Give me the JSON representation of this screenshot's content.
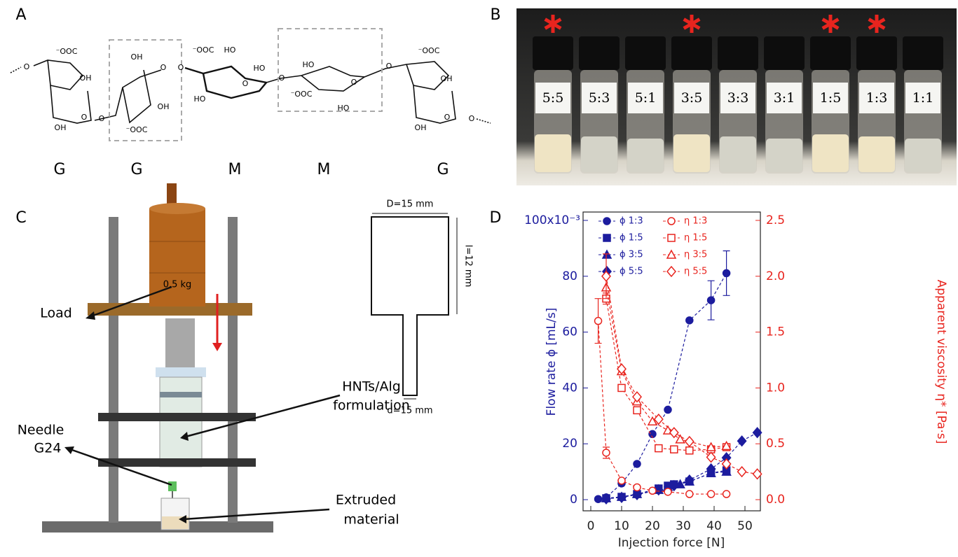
{
  "panels": [
    "A",
    "B",
    "C",
    "D"
  ],
  "panel_a": {
    "structure_labels": [
      "O",
      "⁻OOC",
      "OH",
      "OH",
      "O",
      "O",
      "OH",
      "O",
      "OH",
      "⁻OOC",
      "O",
      "⁻OOC",
      "HO",
      "HO",
      "O",
      "HO",
      "O",
      "HO",
      "O",
      "⁻OOC",
      "HO",
      "O",
      "⁻OOC",
      "OH",
      "O",
      "OH",
      "O"
    ],
    "units": [
      "G",
      "G",
      "M",
      "M",
      "G"
    ]
  },
  "panel_b": {
    "vials": [
      {
        "label": "5:5",
        "marked": true
      },
      {
        "label": "5:3",
        "marked": false
      },
      {
        "label": "5:1",
        "marked": false
      },
      {
        "label": "3:5",
        "marked": true
      },
      {
        "label": "3:3",
        "marked": false
      },
      {
        "label": "3:1",
        "marked": false
      },
      {
        "label": "1:5",
        "marked": true
      },
      {
        "label": "1:3",
        "marked": true
      },
      {
        "label": "1:1",
        "marked": false
      }
    ]
  },
  "panel_c": {
    "weight": "0.5 kg",
    "load": "Load",
    "formulation": [
      "HNTs/Alg",
      "formulation"
    ],
    "needle": [
      "Needle",
      "G24"
    ],
    "extruded": [
      "Extruded",
      "material"
    ],
    "barrel_diameter": "D=15 mm",
    "barrel_length": "l=12 mm",
    "needle_diameter": "d=15 mm"
  },
  "chart_data": {
    "type": "line",
    "x_label": "Injection force [N]",
    "y_label": "Flow rate ϕ [mL/s]",
    "y2_label": "Apparent viscosity η* [Pa·s]",
    "xlim": [
      -2.5,
      55
    ],
    "xticks": [
      0,
      10,
      20,
      30,
      40,
      50
    ],
    "ylim": [
      -4,
      103
    ],
    "yticks": [
      0,
      20,
      40,
      60,
      80,
      {
        "value": 100,
        "label": "100x10⁻³"
      }
    ],
    "y2lim": [
      -0.1,
      2.575
    ],
    "y2ticks": [
      {
        "value": 0,
        "label": "0.0"
      },
      0.5,
      {
        "value": 1,
        "label": "1.0"
      },
      1.5,
      {
        "value": 2,
        "label": "2.0"
      },
      2.5
    ],
    "y_color": "#1c1c9e",
    "y2_color": "#e8241e",
    "series": [
      {
        "name": "ϕ 1:3",
        "color": "#1c1c9e",
        "marker": "circle",
        "filled": true,
        "axis": "y",
        "x": [
          2.4,
          5,
          10,
          15,
          20,
          25,
          32,
          39,
          44
        ],
        "values": [
          0.2,
          0.8,
          5.8,
          12.8,
          23.5,
          32.2,
          64.2,
          71.4,
          81.1
        ],
        "errors": [
          null,
          null,
          null,
          null,
          null,
          null,
          null,
          7,
          8
        ]
      },
      {
        "name": "ϕ 1:5",
        "color": "#1c1c9e",
        "marker": "square",
        "filled": true,
        "axis": "y",
        "x": [
          5,
          10,
          15,
          22,
          25,
          27,
          32,
          39,
          44
        ],
        "values": [
          0.5,
          1,
          2,
          4,
          5,
          5.5,
          6.5,
          9.5,
          10.5
        ],
        "errors": [
          null,
          null,
          null,
          null,
          null,
          null,
          null,
          null,
          null
        ]
      },
      {
        "name": "ϕ 3:5",
        "color": "#1c1c9e",
        "marker": "triangle",
        "filled": true,
        "axis": "y",
        "x": [
          5,
          10,
          15,
          22,
          25,
          29,
          32,
          39,
          44
        ],
        "values": [
          0.5,
          1,
          2,
          3.5,
          4.5,
          5.5,
          6.5,
          9.5,
          10
        ],
        "errors": [
          null,
          null,
          null,
          null,
          null,
          null,
          null,
          null,
          null
        ]
      },
      {
        "name": "ϕ 5:5",
        "color": "#1c1c9e",
        "marker": "diamond",
        "filled": true,
        "axis": "y",
        "x": [
          5,
          10,
          15,
          22,
          27,
          32,
          39,
          44,
          49,
          54
        ],
        "values": [
          0.3,
          0.8,
          1.8,
          3.5,
          5,
          7,
          11,
          15,
          21,
          24
        ],
        "errors": [
          null,
          null,
          null,
          null,
          null,
          null,
          null,
          null,
          null,
          null
        ]
      },
      {
        "name": "η 1:3",
        "color": "#e8241e",
        "marker": "circle",
        "filled": false,
        "axis": "y2",
        "x": [
          2.4,
          5,
          10,
          15,
          20,
          25,
          32,
          39,
          44
        ],
        "values": [
          1.6,
          0.42,
          0.17,
          0.11,
          0.08,
          0.07,
          0.05,
          0.05,
          0.05
        ],
        "errors": [
          0.2,
          0.05,
          null,
          null,
          null,
          null,
          null,
          null,
          null
        ]
      },
      {
        "name": "η 1:5",
        "color": "#e8241e",
        "marker": "square",
        "filled": false,
        "axis": "y2",
        "x": [
          5,
          10,
          15,
          22,
          27,
          32,
          39,
          44
        ],
        "values": [
          1.8,
          1.0,
          0.8,
          0.46,
          0.45,
          0.44,
          0.45,
          0.47
        ],
        "errors": [
          0.05,
          null,
          null,
          null,
          null,
          null,
          null,
          null
        ]
      },
      {
        "name": "η 3:5",
        "color": "#e8241e",
        "marker": "triangle",
        "filled": false,
        "axis": "y2",
        "x": [
          5,
          10,
          15,
          20,
          25,
          29,
          39,
          44
        ],
        "values": [
          1.9,
          1.15,
          0.88,
          0.7,
          0.62,
          0.54,
          0.47,
          0.48
        ],
        "errors": [
          null,
          null,
          null,
          null,
          null,
          null,
          null,
          null
        ]
      },
      {
        "name": "η 5:5",
        "color": "#e8241e",
        "marker": "diamond",
        "filled": false,
        "axis": "y2",
        "x": [
          5,
          10,
          15,
          22,
          27,
          32,
          39,
          44,
          49,
          54
        ],
        "values": [
          2.0,
          1.17,
          0.92,
          0.72,
          0.6,
          0.52,
          0.38,
          0.32,
          0.25,
          0.23
        ],
        "errors": [
          0.2,
          null,
          null,
          null,
          null,
          null,
          null,
          null,
          null,
          null
        ]
      }
    ]
  }
}
